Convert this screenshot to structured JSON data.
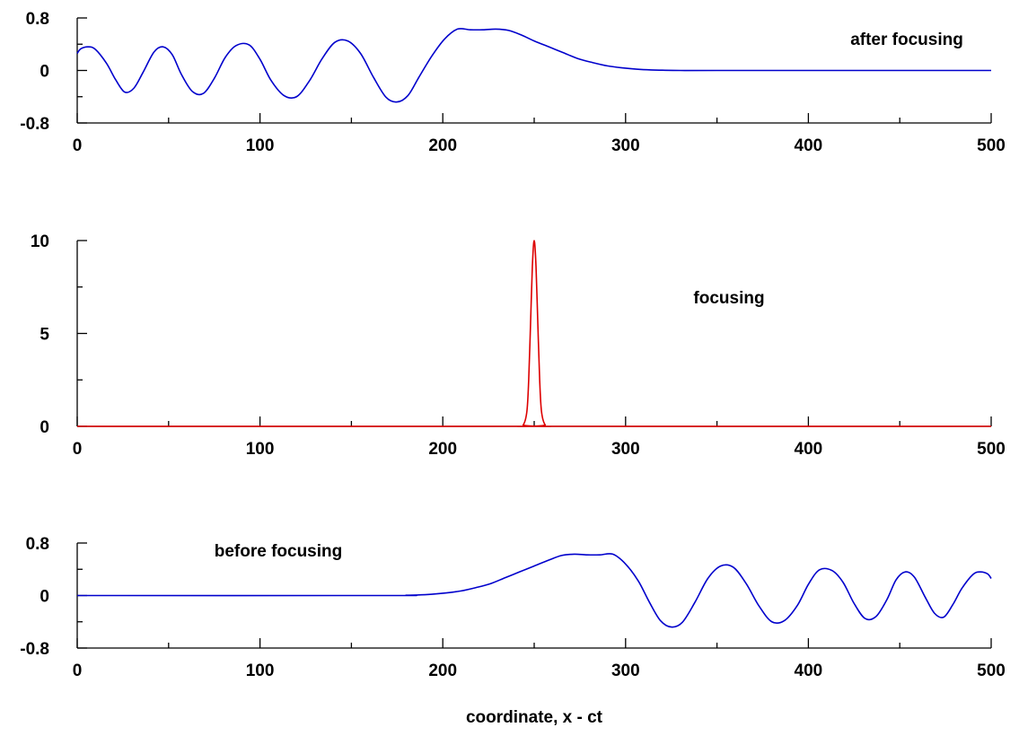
{
  "chart_data": [
    {
      "type": "line",
      "panel": "top",
      "title": "",
      "annotation": "after focusing",
      "xlabel": "",
      "ylabel": "",
      "xlim": [
        0,
        500
      ],
      "ylim": [
        -0.8,
        0.8
      ],
      "x_ticks": [
        0,
        100,
        200,
        300,
        400,
        500
      ],
      "x_tick_labels": [
        "0",
        "100",
        "200",
        "300",
        "400",
        "500"
      ],
      "y_ticks": [
        0.8,
        0,
        -0.8
      ],
      "y_tick_labels": [
        "0.8",
        "0",
        "-0.8"
      ],
      "grid": false,
      "series": [
        {
          "color": "#0000cc",
          "x": [
            0,
            2,
            6,
            10,
            16,
            21,
            26,
            31,
            36,
            42,
            47,
            52,
            57,
            63,
            69,
            75,
            81,
            87,
            94,
            100,
            106,
            113,
            120,
            127,
            134,
            141,
            148,
            155,
            162,
            169,
            175,
            181,
            187,
            194,
            201,
            208,
            215,
            222,
            229,
            236,
            243,
            250,
            258,
            266,
            274,
            282,
            290,
            298,
            306,
            314,
            320,
            330,
            350,
            400,
            450,
            500
          ],
          "y": [
            0.26,
            0.33,
            0.36,
            0.32,
            0.11,
            -0.14,
            -0.33,
            -0.27,
            -0.03,
            0.28,
            0.36,
            0.24,
            -0.06,
            -0.32,
            -0.35,
            -0.12,
            0.2,
            0.38,
            0.39,
            0.17,
            -0.15,
            -0.38,
            -0.4,
            -0.16,
            0.18,
            0.43,
            0.45,
            0.26,
            -0.1,
            -0.41,
            -0.48,
            -0.38,
            -0.1,
            0.22,
            0.48,
            0.63,
            0.62,
            0.62,
            0.63,
            0.61,
            0.54,
            0.45,
            0.36,
            0.27,
            0.18,
            0.12,
            0.07,
            0.04,
            0.02,
            0.008,
            0.004,
            0,
            0,
            0,
            0,
            0
          ]
        }
      ]
    },
    {
      "type": "line",
      "panel": "middle",
      "title": "",
      "annotation": "focusing",
      "xlabel": "",
      "ylabel": "",
      "xlim": [
        0,
        500
      ],
      "ylim": [
        0,
        10
      ],
      "x_ticks": [
        0,
        100,
        200,
        300,
        400,
        500
      ],
      "x_tick_labels": [
        "0",
        "100",
        "200",
        "300",
        "400",
        "500"
      ],
      "y_ticks": [
        10,
        5,
        0
      ],
      "y_tick_labels": [
        "10",
        "5",
        "0"
      ],
      "grid": false,
      "series": [
        {
          "color": "#dd0000",
          "x": [
            0,
            240,
            244,
            246,
            247,
            248,
            249,
            250,
            251,
            252,
            253,
            254,
            256,
            260,
            500
          ],
          "y": [
            0,
            0,
            0.08,
            0.8,
            2.5,
            5.5,
            8.6,
            10,
            8.6,
            5.5,
            2.5,
            0.8,
            0.08,
            0,
            0
          ]
        }
      ]
    },
    {
      "type": "line",
      "panel": "bottom",
      "title": "",
      "annotation": "before focusing",
      "xlabel": "coordinate, x - ct",
      "ylabel": "",
      "xlim": [
        0,
        500
      ],
      "ylim": [
        -0.8,
        0.8
      ],
      "x_ticks": [
        0,
        100,
        200,
        300,
        400,
        500
      ],
      "x_tick_labels": [
        "0",
        "100",
        "200",
        "300",
        "400",
        "500"
      ],
      "y_ticks": [
        0.8,
        0,
        -0.8
      ],
      "y_tick_labels": [
        "0.8",
        "0",
        "-0.8"
      ],
      "grid": false,
      "series": [
        {
          "color": "#0000cc",
          "x": [
            0,
            170,
            180,
            186,
            194,
            202,
            210,
            218,
            226,
            234,
            242,
            250,
            258,
            265,
            272,
            279,
            286,
            293,
            300,
            307,
            313,
            319,
            325,
            331,
            338,
            345,
            352,
            359,
            366,
            373,
            380,
            387,
            394,
            400,
            406,
            413,
            419,
            425,
            431,
            437,
            443,
            448,
            453,
            458,
            464,
            469,
            474,
            479,
            484,
            490,
            494,
            498,
            500
          ],
          "y": [
            0,
            0,
            0.004,
            0.008,
            0.02,
            0.04,
            0.07,
            0.12,
            0.18,
            0.27,
            0.36,
            0.45,
            0.54,
            0.61,
            0.63,
            0.62,
            0.62,
            0.63,
            0.48,
            0.22,
            -0.1,
            -0.38,
            -0.48,
            -0.41,
            -0.1,
            0.26,
            0.45,
            0.43,
            0.18,
            -0.16,
            -0.4,
            -0.38,
            -0.15,
            0.17,
            0.39,
            0.38,
            0.2,
            -0.12,
            -0.35,
            -0.32,
            -0.06,
            0.24,
            0.36,
            0.28,
            -0.03,
            -0.27,
            -0.33,
            -0.14,
            0.11,
            0.32,
            0.36,
            0.33,
            0.26
          ]
        }
      ]
    }
  ]
}
